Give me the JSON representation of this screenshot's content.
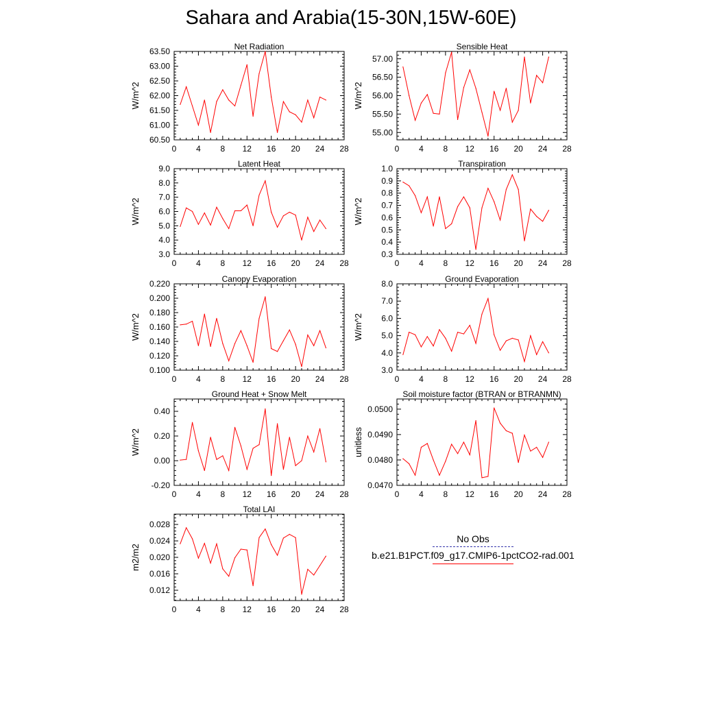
{
  "title": "Sahara and Arabia(15-30N,15W-60E)",
  "legend": {
    "obs_label": "No Obs",
    "model_label": "b.e21.B1PCT.f09_g17.CMIP6-1pctCO2-rad.001",
    "obs_color": "#3333aa",
    "model_color": "#ff0000"
  },
  "chart_data": [
    {
      "type": "line",
      "title": "Net Radiation",
      "ylabel": "W/m^2",
      "xlim": [
        0,
        28
      ],
      "xticks": [
        0,
        4,
        8,
        12,
        16,
        20,
        24,
        28
      ],
      "ylim": [
        60.5,
        63.5
      ],
      "yticks": [
        60.5,
        61.0,
        61.5,
        62.0,
        62.5,
        63.0,
        63.5
      ],
      "ytick_labels": [
        "60.50",
        "61.00",
        "61.50",
        "62.00",
        "62.50",
        "63.00",
        "63.50"
      ],
      "series": [
        {
          "color": "#ff0000",
          "x": [
            1,
            2,
            3,
            4,
            5,
            6,
            7,
            8,
            9,
            10,
            11,
            12,
            13,
            14,
            15,
            16,
            17,
            18,
            19,
            20,
            21,
            22,
            23,
            24,
            25
          ],
          "y": [
            61.7,
            62.3,
            61.65,
            61.0,
            61.85,
            60.75,
            61.8,
            62.2,
            61.85,
            61.65,
            62.35,
            63.05,
            61.3,
            62.75,
            63.5,
            61.95,
            60.75,
            61.8,
            61.45,
            61.35,
            61.1,
            61.85,
            61.25,
            61.95,
            61.85
          ]
        }
      ]
    },
    {
      "type": "line",
      "title": "Sensible Heat",
      "ylabel": "W/m^2",
      "xlim": [
        0,
        28
      ],
      "xticks": [
        0,
        4,
        8,
        12,
        16,
        20,
        24,
        28
      ],
      "ylim": [
        54.8,
        57.2
      ],
      "yticks": [
        55.0,
        55.5,
        56.0,
        56.5,
        57.0
      ],
      "ytick_labels": [
        "55.00",
        "55.50",
        "56.00",
        "56.50",
        "57.00"
      ],
      "series": [
        {
          "color": "#ff0000",
          "x": [
            1,
            2,
            3,
            4,
            5,
            6,
            7,
            8,
            9,
            10,
            11,
            12,
            13,
            14,
            15,
            16,
            17,
            18,
            19,
            20,
            21,
            22,
            23,
            24,
            25
          ],
          "y": [
            56.78,
            56.0,
            55.33,
            55.8,
            56.03,
            55.52,
            55.5,
            56.62,
            57.18,
            55.35,
            56.22,
            56.7,
            56.2,
            55.55,
            54.9,
            56.12,
            55.6,
            56.2,
            55.28,
            55.6,
            57.05,
            55.8,
            56.55,
            56.35,
            57.05
          ]
        }
      ]
    },
    {
      "type": "line",
      "title": "Latent Heat",
      "ylabel": "W/m^2",
      "xlim": [
        0,
        28
      ],
      "xticks": [
        0,
        4,
        8,
        12,
        16,
        20,
        24,
        28
      ],
      "ylim": [
        3.0,
        9.0
      ],
      "yticks": [
        3.0,
        4.0,
        5.0,
        6.0,
        7.0,
        8.0,
        9.0
      ],
      "ytick_labels": [
        "3.0",
        "4.0",
        "5.0",
        "6.0",
        "7.0",
        "8.0",
        "9.0"
      ],
      "series": [
        {
          "color": "#ff0000",
          "x": [
            1,
            2,
            3,
            4,
            5,
            6,
            7,
            8,
            9,
            10,
            11,
            12,
            13,
            14,
            15,
            16,
            17,
            18,
            19,
            20,
            21,
            22,
            23,
            24,
            25
          ],
          "y": [
            4.95,
            6.25,
            6.0,
            5.1,
            5.9,
            5.05,
            6.3,
            5.5,
            4.8,
            6.05,
            6.05,
            6.45,
            5.0,
            7.15,
            8.15,
            5.95,
            4.9,
            5.7,
            5.95,
            5.75,
            4.0,
            5.6,
            4.6,
            5.4,
            4.8
          ]
        }
      ]
    },
    {
      "type": "line",
      "title": "Transpiration",
      "ylabel": "W/m^2",
      "xlim": [
        0,
        28
      ],
      "xticks": [
        0,
        4,
        8,
        12,
        16,
        20,
        24,
        28
      ],
      "ylim": [
        0.3,
        1.0
      ],
      "yticks": [
        0.3,
        0.4,
        0.5,
        0.6,
        0.7,
        0.8,
        0.9,
        1.0
      ],
      "ytick_labels": [
        "0.3",
        "0.4",
        "0.5",
        "0.6",
        "0.7",
        "0.8",
        "0.9",
        "1.0"
      ],
      "series": [
        {
          "color": "#ff0000",
          "x": [
            1,
            2,
            3,
            4,
            5,
            6,
            7,
            8,
            9,
            10,
            11,
            12,
            13,
            14,
            15,
            16,
            17,
            18,
            19,
            20,
            21,
            22,
            23,
            24,
            25
          ],
          "y": [
            0.89,
            0.86,
            0.78,
            0.64,
            0.77,
            0.53,
            0.77,
            0.51,
            0.55,
            0.69,
            0.77,
            0.68,
            0.34,
            0.68,
            0.84,
            0.73,
            0.58,
            0.83,
            0.95,
            0.83,
            0.41,
            0.67,
            0.61,
            0.57,
            0.66
          ]
        }
      ]
    },
    {
      "type": "line",
      "title": "Canopy Evaporation",
      "ylabel": "W/m^2",
      "xlim": [
        0,
        28
      ],
      "xticks": [
        0,
        4,
        8,
        12,
        16,
        20,
        24,
        28
      ],
      "ylim": [
        0.1,
        0.22
      ],
      "yticks": [
        0.1,
        0.12,
        0.14,
        0.16,
        0.18,
        0.2,
        0.22
      ],
      "ytick_labels": [
        "0.100",
        "0.120",
        "0.140",
        "0.160",
        "0.180",
        "0.200",
        "0.220"
      ],
      "series": [
        {
          "color": "#ff0000",
          "x": [
            1,
            2,
            3,
            4,
            5,
            6,
            7,
            8,
            9,
            10,
            11,
            12,
            13,
            14,
            15,
            16,
            17,
            18,
            19,
            20,
            21,
            22,
            23,
            24,
            25
          ],
          "y": [
            0.163,
            0.164,
            0.168,
            0.134,
            0.178,
            0.133,
            0.172,
            0.137,
            0.113,
            0.137,
            0.155,
            0.134,
            0.111,
            0.172,
            0.202,
            0.13,
            0.126,
            0.141,
            0.156,
            0.136,
            0.105,
            0.149,
            0.134,
            0.155,
            0.131
          ]
        }
      ]
    },
    {
      "type": "line",
      "title": "Ground Evaporation",
      "ylabel": "W/m^2",
      "xlim": [
        0,
        28
      ],
      "xticks": [
        0,
        4,
        8,
        12,
        16,
        20,
        24,
        28
      ],
      "ylim": [
        3.0,
        8.0
      ],
      "yticks": [
        3.0,
        4.0,
        5.0,
        6.0,
        7.0,
        8.0
      ],
      "ytick_labels": [
        "3.0",
        "4.0",
        "5.0",
        "6.0",
        "7.0",
        "8.0"
      ],
      "series": [
        {
          "color": "#ff0000",
          "x": [
            1,
            2,
            3,
            4,
            5,
            6,
            7,
            8,
            9,
            10,
            11,
            12,
            13,
            14,
            15,
            16,
            17,
            18,
            19,
            20,
            21,
            22,
            23,
            24,
            25
          ],
          "y": [
            3.9,
            5.2,
            5.05,
            4.35,
            4.95,
            4.4,
            5.35,
            4.85,
            4.1,
            5.2,
            5.1,
            5.6,
            4.55,
            6.25,
            7.15,
            5.05,
            4.15,
            4.7,
            4.85,
            4.75,
            3.5,
            5.0,
            3.9,
            4.65,
            4.0
          ]
        }
      ]
    },
    {
      "type": "line",
      "title": "Ground Heat + Snow Melt",
      "ylabel": "W/m^2",
      "xlim": [
        0,
        28
      ],
      "xticks": [
        0,
        4,
        8,
        12,
        16,
        20,
        24,
        28
      ],
      "ylim": [
        -0.2,
        0.5
      ],
      "yticks": [
        -0.2,
        0.0,
        0.2,
        0.4
      ],
      "ytick_labels": [
        "-0.20",
        "0.00",
        "0.20",
        "0.40"
      ],
      "series": [
        {
          "color": "#ff0000",
          "x": [
            1,
            2,
            3,
            4,
            5,
            6,
            7,
            8,
            9,
            10,
            11,
            12,
            13,
            14,
            15,
            16,
            17,
            18,
            19,
            20,
            21,
            22,
            23,
            24,
            25
          ],
          "y": [
            0.005,
            0.01,
            0.31,
            0.08,
            -0.08,
            0.19,
            0.01,
            0.04,
            -0.08,
            0.27,
            0.12,
            -0.07,
            0.1,
            0.13,
            0.42,
            -0.12,
            0.3,
            -0.07,
            0.19,
            -0.04,
            0.0,
            0.2,
            0.07,
            0.26,
            -0.01
          ]
        }
      ]
    },
    {
      "type": "line",
      "title": "Soil moisture factor (BTRAN or BTRANMN)",
      "ylabel": "unitless",
      "xlim": [
        0,
        28
      ],
      "xticks": [
        0,
        4,
        8,
        12,
        16,
        20,
        24,
        28
      ],
      "ylim": [
        0.047,
        0.0504
      ],
      "yticks": [
        0.047,
        0.048,
        0.049,
        0.05
      ],
      "ytick_labels": [
        "0.0470",
        "0.0480",
        "0.0490",
        "0.0500"
      ],
      "series": [
        {
          "color": "#ff0000",
          "x": [
            1,
            2,
            3,
            4,
            5,
            6,
            7,
            8,
            9,
            10,
            11,
            12,
            13,
            14,
            15,
            16,
            17,
            18,
            19,
            20,
            21,
            22,
            23,
            24,
            25
          ],
          "y": [
            0.04805,
            0.04785,
            0.0474,
            0.0485,
            0.04865,
            0.048,
            0.0474,
            0.04795,
            0.04862,
            0.04825,
            0.0487,
            0.0482,
            0.04955,
            0.0473,
            0.04735,
            0.05005,
            0.04945,
            0.04915,
            0.04905,
            0.0479,
            0.04898,
            0.04835,
            0.0485,
            0.0481,
            0.0487
          ]
        }
      ]
    },
    {
      "type": "line",
      "title": "Total LAI",
      "ylabel": "m2/m2",
      "xlim": [
        0,
        28
      ],
      "xticks": [
        0,
        4,
        8,
        12,
        16,
        20,
        24,
        28
      ],
      "ylim": [
        0.0095,
        0.0305
      ],
      "yticks": [
        0.012,
        0.016,
        0.02,
        0.024,
        0.028
      ],
      "ytick_labels": [
        "0.012",
        "0.016",
        "0.020",
        "0.024",
        "0.028"
      ],
      "series": [
        {
          "color": "#ff0000",
          "x": [
            1,
            2,
            3,
            4,
            5,
            6,
            7,
            8,
            9,
            10,
            11,
            12,
            13,
            14,
            15,
            16,
            17,
            18,
            19,
            20,
            21,
            22,
            23,
            24,
            25
          ],
          "y": [
            0.0233,
            0.0272,
            0.0245,
            0.0198,
            0.0234,
            0.0186,
            0.0233,
            0.0172,
            0.0154,
            0.0199,
            0.022,
            0.0218,
            0.0131,
            0.0248,
            0.0269,
            0.0231,
            0.0205,
            0.0247,
            0.0256,
            0.0248,
            0.011,
            0.0171,
            0.0157,
            0.018,
            0.0203
          ]
        }
      ]
    }
  ]
}
